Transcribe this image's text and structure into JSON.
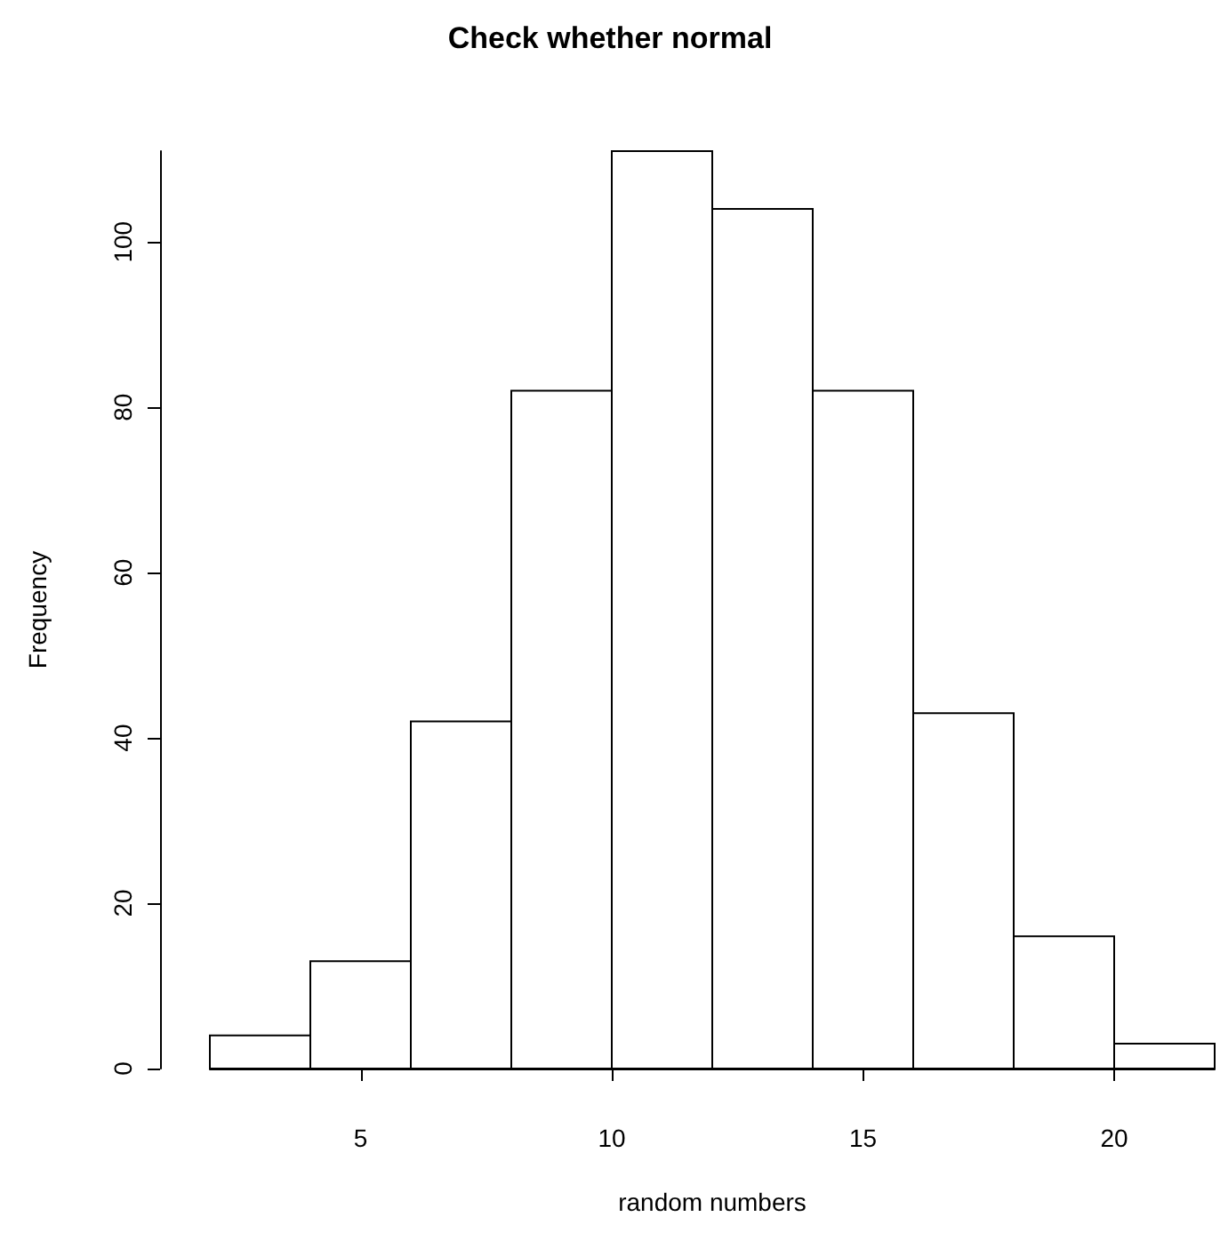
{
  "chart_data": {
    "type": "histogram",
    "title": "Check whether normal",
    "xlabel": "random numbers",
    "ylabel": "Frequency",
    "bins": [
      2,
      4,
      6,
      8,
      10,
      12,
      14,
      16,
      18,
      20,
      22
    ],
    "values": [
      4,
      13,
      42,
      82,
      111,
      104,
      82,
      43,
      16,
      3
    ],
    "color": "#ffffff",
    "xlim": [
      2,
      22
    ],
    "xticks": [
      5,
      10,
      15,
      20
    ],
    "ylim": [
      0,
      111
    ],
    "yticks": [
      0,
      20,
      40,
      60,
      80,
      100
    ],
    "grid": false
  }
}
